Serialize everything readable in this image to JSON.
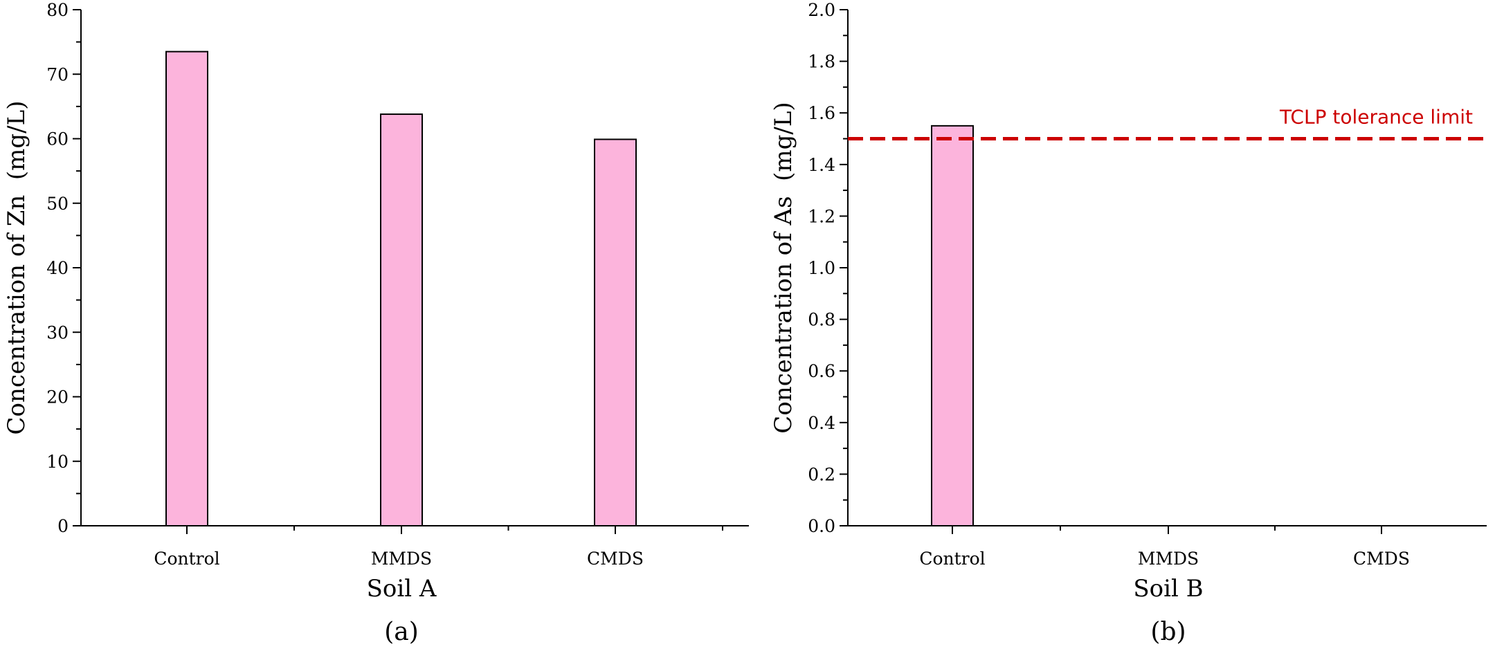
{
  "chart_data": [
    {
      "type": "bar",
      "categories": [
        "Control",
        "MMDS",
        "CMDS"
      ],
      "values": [
        73.5,
        63.8,
        59.9
      ],
      "xlabel": "Soil A",
      "ylabel": "Concentration of Zn  (mg/L)",
      "ylim": [
        0,
        80
      ],
      "yticks": [
        "0",
        "10",
        "20",
        "30",
        "40",
        "50",
        "60",
        "70",
        "80"
      ],
      "panel_label": "(a)",
      "grid": false,
      "bar_color": "#fcb4dc"
    },
    {
      "type": "bar",
      "categories": [
        "Control",
        "MMDS",
        "CMDS"
      ],
      "values": [
        1.55,
        0,
        0
      ],
      "xlabel": "Soil B",
      "ylabel": "Concentration of As  (mg/L)",
      "ylim": [
        0,
        2.0
      ],
      "yticks": [
        "0.0",
        "0.2",
        "0.4",
        "0.6",
        "0.8",
        "1.0",
        "1.2",
        "1.4",
        "1.6",
        "1.8",
        "2.0"
      ],
      "panel_label": "(b)",
      "grid": false,
      "bar_color": "#fcb4dc",
      "reference_line": {
        "value": 1.5,
        "label": "TCLP tolerance limit",
        "color": "#cc0000",
        "style": "dashed"
      }
    }
  ]
}
